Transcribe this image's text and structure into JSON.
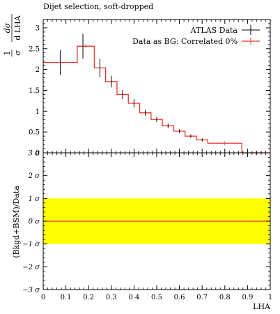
{
  "chart_data": [
    {
      "type": "line",
      "title": "Dijet selection, soft-dropped",
      "ylabel": "1/σ dσ/d LHA",
      "ylabel_parts": {
        "frac1_num": "1",
        "frac1_den": "σ",
        "frac2_num": "dσ",
        "frac2_den": "d LHA"
      },
      "xlim": [
        0,
        1
      ],
      "ylim": [
        0,
        3.2
      ],
      "yticks": [
        "0",
        "0.5",
        "1",
        "1.5",
        "2",
        "2.5",
        "3"
      ],
      "grid": false,
      "legend_placement": "top-right",
      "series": [
        {
          "name": "ATLAS Data",
          "style": "points",
          "color": "#000000",
          "x": [
            0.075,
            0.175,
            0.25,
            0.3,
            0.35,
            0.4,
            0.45,
            0.5,
            0.55,
            0.6,
            0.65,
            0.7,
            0.8,
            0.95
          ],
          "y": [
            2.17,
            2.56,
            2.04,
            1.71,
            1.4,
            1.19,
            0.96,
            0.8,
            0.65,
            0.52,
            0.4,
            0.31,
            0.0,
            0.0
          ],
          "yerr": [
            0.3,
            0.3,
            0.22,
            0.14,
            0.11,
            0.1,
            0.07,
            0.06,
            0.05,
            0.04,
            0.03,
            0.03,
            0.0,
            0.0
          ]
        },
        {
          "name": "Data as BG: Correlated 0%",
          "style": "step",
          "color": "#e8352b",
          "edges": [
            0,
            0.15,
            0.225,
            0.275,
            0.325,
            0.375,
            0.425,
            0.475,
            0.525,
            0.575,
            0.625,
            0.675,
            0.725,
            0.875,
            1.0
          ],
          "values": [
            2.17,
            2.56,
            2.04,
            1.71,
            1.4,
            1.19,
            0.96,
            0.8,
            0.65,
            0.52,
            0.4,
            0.31,
            0.23,
            0.0
          ]
        }
      ]
    },
    {
      "type": "line",
      "xlabel": "LHA",
      "ylabel": "(Bkgd+BSM)/Data",
      "xlim": [
        0,
        1
      ],
      "ylim": [
        -3,
        3
      ],
      "xticks": [
        "0",
        "0.1",
        "0.2",
        "0.3",
        "0.4",
        "0.5",
        "0.6",
        "0.7",
        "0.8",
        "0.9",
        "1"
      ],
      "yticks": [
        "−3 σ",
        "−2 σ",
        "−1 σ",
        "0 σ",
        "1 σ",
        "2 σ",
        "3 σ"
      ],
      "band": {
        "from": -1,
        "to": 1,
        "color": "#ffff00"
      },
      "series": [
        {
          "name": "",
          "color": "#e8352b",
          "x": [
            0,
            1
          ],
          "y": [
            0,
            0
          ]
        }
      ]
    }
  ],
  "colors": {
    "data": "#000000",
    "model": "#e8352b",
    "band": "#ffff00"
  }
}
